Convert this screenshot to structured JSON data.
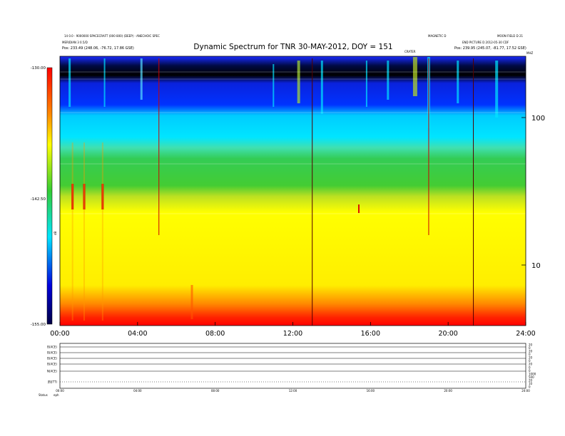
{
  "chart_data": {
    "type": "heatmap",
    "title": "Dynamic Spectrum for TNR 30-MAY-2012, DOY = 151",
    "header_left_1": "14 0.0 - 9000000 SPACECRAFT (000 800) (DEEP) - ANECHOIC SPEC",
    "header_left_2": "MERIDIAN 3 0.5/D",
    "header_left_3": "Pos: 233.49 (248.06, -76.72, 17.86 GSE)",
    "header_right_1": "MAGNETIC D",
    "header_right_2": "MOON FIELD D 21",
    "header_right_3": "END PICTURE D 2012-05-30 CDF",
    "header_right_4": "Pos: 239.95 (245.07, -81.77, 17.52 GSE)",
    "event_label": "CRATER",
    "corner_label": "MHZ",
    "x_ticks": [
      "00:00",
      "04:00",
      "08:00",
      "12:00",
      "16:00",
      "20:00",
      "24:00"
    ],
    "x_range_hours": [
      0,
      24
    ],
    "y_ticks": [
      "100",
      "10"
    ],
    "y_scale": "log",
    "colorbar_ticks": [
      "-130.00",
      "-142.50",
      "-155.00"
    ],
    "colorbar_range": [
      -155.0,
      -130.0
    ],
    "colorbar_label": "dB",
    "colorbar_colors": [
      "#ff0000",
      "#ff9900",
      "#ffff00",
      "#33cc33",
      "#00e5ff",
      "#0000dd",
      "#000055"
    ],
    "vertical_markers_hours": [
      5.1,
      13.0,
      19.0,
      21.3
    ],
    "marker_color": "#cc0000",
    "bands": [
      {
        "freq_range": "top",
        "color": "#000022",
        "note": "dark band"
      },
      {
        "freq_range": "upper",
        "color": "#0033ff"
      },
      {
        "freq_range": "mid-upper",
        "color": "#00e5ff"
      },
      {
        "freq_range": "mid",
        "color": "#33cc33"
      },
      {
        "freq_range": "lower",
        "color": "#ffff00"
      },
      {
        "freq_range": "bottom",
        "color": "#ff0000"
      }
    ],
    "sub_panels": [
      {
        "label": "B(ACE)"
      },
      {
        "label": "B(ACE)"
      },
      {
        "label": "B(ACE)"
      },
      {
        "label": "B(ACE)"
      },
      {
        "label": "N(ACE)"
      },
      {
        "label": "|B|(TT)"
      }
    ],
    "sub_right_ticks": [
      "20",
      "0",
      "20",
      "0",
      "20",
      "0",
      "20",
      "0",
      "0",
      "1000",
      "500",
      "20",
      "10",
      "0"
    ],
    "sub_x_ticks": [
      "00:00",
      "04:00",
      "08:00",
      "12:00",
      "16:00",
      "20:00",
      "24:00"
    ],
    "footer_label": "Status",
    "footer_value": "eph"
  }
}
